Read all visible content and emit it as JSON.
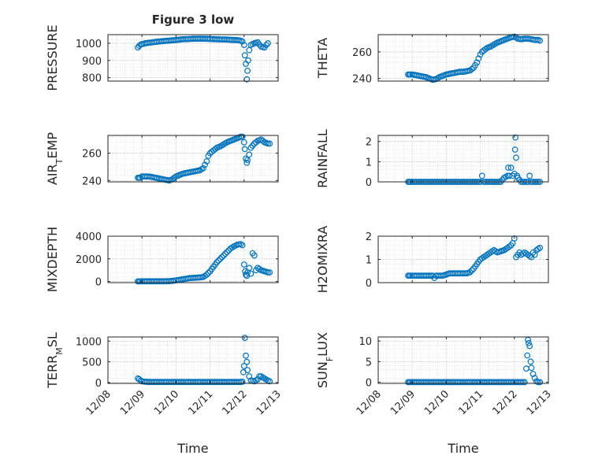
{
  "figure_title": "Figure 3 low",
  "x_ticks": [
    "12/08",
    "12/09",
    "12/10",
    "12/11",
    "12/12",
    "12/13"
  ],
  "marker_color": "#0072BD",
  "chart_data": [
    {
      "type": "scatter",
      "title": "Figure 3 low",
      "ylabel": "PRESSURE",
      "xlabel": "",
      "xlim": [
        "12/08",
        "12/13"
      ],
      "ylim": [
        780,
        1050
      ],
      "yticks": [
        800,
        900,
        1000
      ],
      "grid": true,
      "series": [
        {
          "x": [
            0.88,
            0.92,
            0.96,
            1.0,
            1.05,
            1.1,
            1.2,
            1.3,
            1.4,
            1.5,
            1.6,
            1.7,
            1.8,
            1.9,
            2.0,
            2.1,
            2.2,
            2.3,
            2.4,
            2.5,
            2.6,
            2.7,
            2.8,
            2.9,
            3.0,
            3.1,
            3.2,
            3.3,
            3.4,
            3.5,
            3.6,
            3.7,
            3.8,
            3.9,
            3.95,
            4.0,
            4.02,
            4.05,
            4.08,
            4.1,
            4.12,
            4.15,
            4.2,
            4.3,
            4.4,
            4.5,
            4.6,
            4.65,
            4.7
          ],
          "y": [
            975,
            985,
            992,
            995,
            997,
            1000,
            1003,
            1005,
            1008,
            1010,
            1012,
            1014,
            1015,
            1017,
            1019,
            1021,
            1023,
            1024,
            1025,
            1026,
            1026,
            1027,
            1026,
            1026,
            1025,
            1024,
            1023,
            1022,
            1022,
            1021,
            1020,
            1019,
            1018,
            1015,
            1010,
            990,
            930,
            880,
            790,
            840,
            900,
            960,
            990,
            1000,
            1005,
            980,
            975,
            990,
            1000
          ]
        }
      ]
    },
    {
      "type": "scatter",
      "ylabel": "THETA",
      "xlabel": "",
      "xlim": [
        "12/08",
        "12/13"
      ],
      "ylim": [
        238,
        273
      ],
      "yticks": [
        240,
        260
      ],
      "grid": true,
      "series": [
        {
          "x": [
            0.88,
            0.95,
            1.0,
            1.1,
            1.2,
            1.3,
            1.4,
            1.5,
            1.6,
            1.7,
            1.8,
            1.9,
            2.0,
            2.1,
            2.2,
            2.3,
            2.4,
            2.5,
            2.6,
            2.7,
            2.8,
            2.9,
            2.95,
            3.0,
            3.05,
            3.1,
            3.15,
            3.2,
            3.3,
            3.4,
            3.5,
            3.6,
            3.7,
            3.8,
            3.9,
            4.0,
            4.1,
            4.2,
            4.3,
            4.4,
            4.5,
            4.6,
            4.7,
            4.75
          ],
          "y": [
            243,
            243,
            243,
            242.5,
            242,
            241.5,
            241,
            240,
            239,
            239.5,
            241,
            242,
            243,
            243.5,
            244,
            244.5,
            245,
            245,
            245.5,
            246,
            248,
            252,
            255,
            258,
            260,
            261,
            262,
            263,
            264,
            265.5,
            267,
            268,
            269,
            270,
            271,
            271.5,
            270,
            269.5,
            270,
            270,
            269.5,
            269,
            269,
            268.5
          ]
        }
      ]
    },
    {
      "type": "scatter",
      "ylabel": "AIR_TEMP",
      "xlabel": "",
      "xlim": [
        "12/08",
        "12/13"
      ],
      "ylim": [
        239,
        273
      ],
      "yticks": [
        240,
        260
      ],
      "grid": true,
      "series": [
        {
          "x": [
            0.88,
            0.95,
            1.0,
            1.1,
            1.2,
            1.3,
            1.4,
            1.5,
            1.6,
            1.7,
            1.8,
            1.9,
            2.0,
            2.1,
            2.2,
            2.3,
            2.4,
            2.5,
            2.6,
            2.7,
            2.8,
            2.9,
            2.95,
            3.0,
            3.05,
            3.1,
            3.15,
            3.2,
            3.3,
            3.4,
            3.5,
            3.6,
            3.7,
            3.8,
            3.9,
            3.95,
            4.0,
            4.02,
            4.05,
            4.08,
            4.1,
            4.15,
            4.2,
            4.3,
            4.4,
            4.5,
            4.6,
            4.7,
            4.75
          ],
          "y": [
            242,
            242,
            243,
            243,
            243,
            242.5,
            242,
            241.5,
            241,
            240.5,
            240,
            241,
            243,
            244,
            245,
            245.5,
            246,
            246.5,
            247,
            247.5,
            249,
            254,
            258,
            260,
            261,
            262,
            263,
            264,
            265,
            266.5,
            268,
            269,
            270,
            271,
            272,
            272,
            268,
            263,
            256,
            253,
            255,
            259,
            264,
            267,
            269,
            270,
            268,
            267,
            267
          ]
        }
      ]
    },
    {
      "type": "scatter",
      "ylabel": "RAINFALL",
      "xlabel": "",
      "xlim": [
        "12/08",
        "12/13"
      ],
      "ylim": [
        0,
        2.3
      ],
      "yticks": [
        0,
        1,
        2
      ],
      "grid": true,
      "series": [
        {
          "x": [
            0.88,
            0.95,
            1.0,
            1.1,
            1.2,
            1.3,
            1.4,
            1.5,
            1.6,
            1.7,
            1.8,
            1.9,
            2.0,
            2.1,
            2.2,
            2.3,
            2.4,
            2.5,
            2.6,
            2.7,
            2.8,
            2.9,
            3.0,
            3.05,
            3.1,
            3.2,
            3.3,
            3.4,
            3.5,
            3.6,
            3.7,
            3.8,
            3.82,
            3.85,
            3.9,
            3.95,
            4.0,
            4.02,
            4.03,
            4.05,
            4.08,
            4.1,
            4.2,
            4.3,
            4.4,
            4.45,
            4.5,
            4.6,
            4.7,
            4.75
          ],
          "y": [
            0,
            0,
            0,
            0,
            0,
            0,
            0,
            0,
            0,
            0,
            0,
            0,
            0,
            0,
            0,
            0,
            0,
            0,
            0,
            0,
            0,
            0,
            0,
            0.3,
            0,
            0,
            0,
            0,
            0,
            0,
            0.2,
            0.3,
            0.7,
            0.3,
            0.7,
            0.3,
            0.4,
            1.6,
            2.2,
            1.2,
            0.3,
            0.2,
            0,
            0,
            0,
            0.3,
            0,
            0,
            0,
            0
          ]
        }
      ]
    },
    {
      "type": "scatter",
      "ylabel": "MIXDEPTH",
      "xlabel": "",
      "xlim": [
        "12/08",
        "12/13"
      ],
      "ylim": [
        -100,
        4000
      ],
      "yticks": [
        0,
        2000,
        4000
      ],
      "grid": true,
      "series": [
        {
          "x": [
            0.88,
            0.95,
            1.0,
            1.1,
            1.2,
            1.3,
            1.4,
            1.5,
            1.6,
            1.7,
            1.8,
            1.9,
            2.0,
            2.1,
            2.2,
            2.3,
            2.4,
            2.5,
            2.6,
            2.7,
            2.8,
            2.9,
            3.0,
            3.05,
            3.1,
            3.15,
            3.2,
            3.3,
            3.4,
            3.5,
            3.6,
            3.7,
            3.8,
            3.9,
            3.95,
            4.0,
            4.03,
            4.05,
            4.08,
            4.1,
            4.15,
            4.2,
            4.25,
            4.3,
            4.35,
            4.4,
            4.5,
            4.6,
            4.7,
            4.75
          ],
          "y": [
            10,
            10,
            10,
            20,
            20,
            20,
            20,
            20,
            20,
            20,
            30,
            60,
            100,
            150,
            200,
            250,
            300,
            320,
            340,
            360,
            400,
            600,
            900,
            1100,
            1300,
            1500,
            1700,
            2000,
            2300,
            2600,
            2900,
            3100,
            3250,
            3300,
            3200,
            1500,
            900,
            600,
            500,
            800,
            1200,
            700,
            2500,
            2300,
            1000,
            1200,
            1000,
            900,
            800,
            800
          ]
        }
      ]
    },
    {
      "type": "scatter",
      "ylabel": "H2OMIXRA",
      "xlabel": "",
      "xlim": [
        "12/08",
        "12/13"
      ],
      "ylim": [
        0,
        2.0
      ],
      "yticks": [
        0,
        1,
        2
      ],
      "grid": true,
      "series": [
        {
          "x": [
            0.88,
            0.95,
            1.0,
            1.1,
            1.2,
            1.3,
            1.4,
            1.5,
            1.6,
            1.65,
            1.7,
            1.8,
            1.9,
            2.0,
            2.1,
            2.2,
            2.3,
            2.4,
            2.5,
            2.6,
            2.7,
            2.8,
            2.9,
            3.0,
            3.1,
            3.2,
            3.3,
            3.4,
            3.5,
            3.6,
            3.7,
            3.8,
            3.9,
            3.95,
            4.0,
            4.05,
            4.1,
            4.15,
            4.2,
            4.3,
            4.4,
            4.5,
            4.55,
            4.6,
            4.65,
            4.7,
            4.75
          ],
          "y": [
            0.3,
            0.3,
            0.3,
            0.3,
            0.3,
            0.3,
            0.3,
            0.3,
            0.3,
            0.2,
            0.3,
            0.3,
            0.3,
            0.35,
            0.4,
            0.4,
            0.4,
            0.4,
            0.4,
            0.4,
            0.45,
            0.6,
            0.8,
            1.0,
            1.1,
            1.2,
            1.3,
            1.4,
            1.3,
            1.35,
            1.4,
            1.5,
            1.6,
            1.7,
            1.9,
            1.1,
            1.2,
            1.3,
            1.2,
            1.3,
            1.2,
            1.1,
            1.3,
            1.2,
            1.4,
            1.45,
            1.5
          ]
        }
      ]
    },
    {
      "type": "scatter",
      "ylabel": "TERR_MSL",
      "xlabel": "Time",
      "xlim": [
        "12/08",
        "12/13"
      ],
      "ylim": [
        -20,
        1100
      ],
      "yticks": [
        0,
        500,
        1000
      ],
      "grid": true,
      "series": [
        {
          "x": [
            0.88,
            0.92,
            0.96,
            1.0,
            1.1,
            1.2,
            1.3,
            1.4,
            1.5,
            1.6,
            1.7,
            1.8,
            1.9,
            2.0,
            2.1,
            2.2,
            2.3,
            2.4,
            2.5,
            2.6,
            2.7,
            2.8,
            2.9,
            3.0,
            3.1,
            3.2,
            3.3,
            3.4,
            3.5,
            3.6,
            3.7,
            3.8,
            3.9,
            3.95,
            3.98,
            4.0,
            4.02,
            4.05,
            4.08,
            4.1,
            4.15,
            4.2,
            4.3,
            4.4,
            4.45,
            4.5,
            4.55,
            4.6,
            4.7,
            4.75
          ],
          "y": [
            100,
            80,
            50,
            30,
            20,
            15,
            15,
            15,
            15,
            15,
            15,
            15,
            15,
            15,
            15,
            15,
            15,
            15,
            15,
            15,
            15,
            15,
            15,
            15,
            15,
            15,
            15,
            15,
            15,
            15,
            15,
            15,
            15,
            20,
            250,
            400,
            1080,
            650,
            500,
            300,
            150,
            50,
            30,
            80,
            150,
            150,
            120,
            100,
            50,
            30
          ]
        }
      ]
    },
    {
      "type": "scatter",
      "ylabel": "SUN_FLUX",
      "xlabel": "Time",
      "xlim": [
        "12/08",
        "12/13"
      ],
      "ylim": [
        -0.3,
        11
      ],
      "yticks": [
        0,
        5,
        10
      ],
      "grid": true,
      "series": [
        {
          "x": [
            0.88,
            0.95,
            1.0,
            1.1,
            1.2,
            1.3,
            1.4,
            1.5,
            1.6,
            1.7,
            1.8,
            1.9,
            2.0,
            2.1,
            2.2,
            2.3,
            2.4,
            2.5,
            2.6,
            2.7,
            2.8,
            2.9,
            3.0,
            3.1,
            3.2,
            3.3,
            3.4,
            3.5,
            3.6,
            3.7,
            3.8,
            3.9,
            4.0,
            4.1,
            4.2,
            4.3,
            4.35,
            4.38,
            4.4,
            4.42,
            4.45,
            4.48,
            4.5,
            4.55,
            4.6,
            4.65,
            4.7,
            4.75
          ],
          "y": [
            0,
            0,
            0,
            0,
            0,
            0,
            0,
            0,
            0,
            0,
            0,
            0,
            0,
            0,
            0,
            0,
            0,
            0,
            0,
            0,
            0,
            0,
            0,
            0,
            0,
            0,
            0,
            0,
            0,
            0,
            0,
            0,
            0,
            0,
            0,
            0,
            3.3,
            6.5,
            10.3,
            9.5,
            8.8,
            5.0,
            3.5,
            2.0,
            1.0,
            0.2,
            0,
            0
          ]
        }
      ]
    }
  ]
}
